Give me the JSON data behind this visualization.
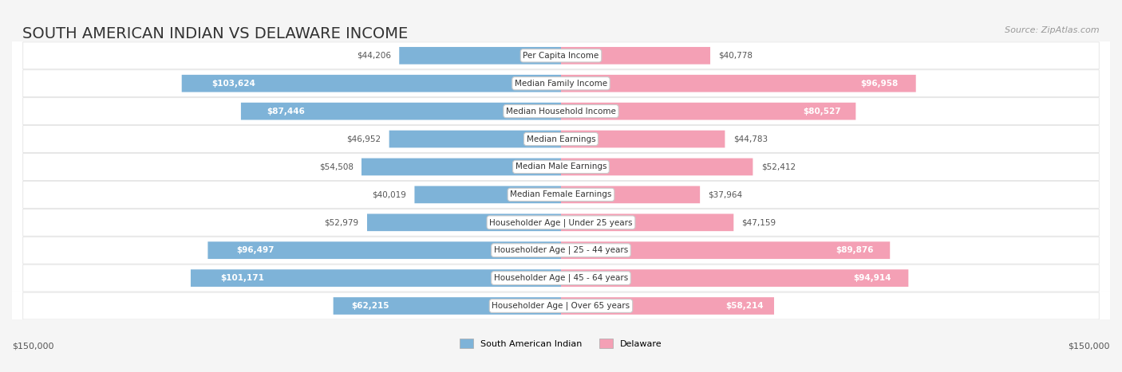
{
  "title": "SOUTH AMERICAN INDIAN VS DELAWARE INCOME",
  "source": "Source: ZipAtlas.com",
  "categories": [
    "Per Capita Income",
    "Median Family Income",
    "Median Household Income",
    "Median Earnings",
    "Median Male Earnings",
    "Median Female Earnings",
    "Householder Age | Under 25 years",
    "Householder Age | 25 - 44 years",
    "Householder Age | 45 - 64 years",
    "Householder Age | Over 65 years"
  ],
  "left_values": [
    44206,
    103624,
    87446,
    46952,
    54508,
    40019,
    52979,
    96497,
    101171,
    62215
  ],
  "right_values": [
    40778,
    96958,
    80527,
    44783,
    52412,
    37964,
    47159,
    89876,
    94914,
    58214
  ],
  "left_labels": [
    "$44,206",
    "$103,624",
    "$87,446",
    "$46,952",
    "$54,508",
    "$40,019",
    "$52,979",
    "$96,497",
    "$101,171",
    "$62,215"
  ],
  "right_labels": [
    "$40,778",
    "$96,958",
    "$80,527",
    "$44,783",
    "$52,412",
    "$37,964",
    "$47,159",
    "$89,876",
    "$94,914",
    "$58,214"
  ],
  "left_color": "#7EB3D8",
  "right_color": "#F4A0B5",
  "left_color_solid": "#5B9EC9",
  "right_color_solid": "#E87DA1",
  "left_label_inside_color": "#FFFFFF",
  "right_label_inside_color": "#FFFFFF",
  "max_value": 150000,
  "background_color": "#F5F5F5",
  "row_background": "#FFFFFF",
  "title_fontsize": 14,
  "legend_left": "South American Indian",
  "legend_right": "Delaware"
}
